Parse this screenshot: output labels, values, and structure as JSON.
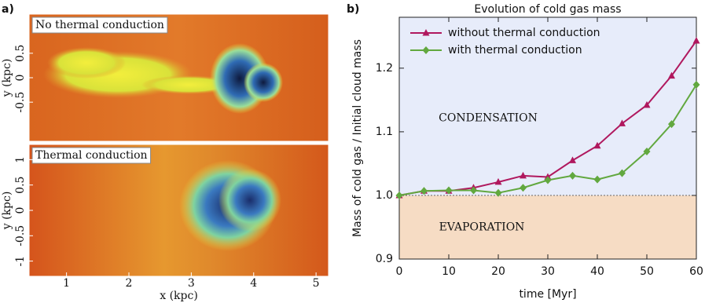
{
  "chart_data": [
    {
      "type": "image",
      "panel_label": "a)",
      "xlabel": "x (kpc)",
      "xlim": [
        0.4,
        5.2
      ],
      "xticks": [
        1,
        2,
        3,
        4,
        5
      ],
      "panels": [
        {
          "label": "No thermal conduction",
          "color": "#7a1a5e",
          "ylabel": "y (kpc)",
          "ylim": [
            -1.3,
            1.3
          ],
          "yticks": [
            0.5,
            0,
            -0.5
          ]
        },
        {
          "label": "Thermal conduction",
          "color": "#4f8f3a",
          "ylabel": "y (kpc)",
          "ylim": [
            -1.3,
            1.3
          ],
          "yticks": [
            1,
            0.5,
            0,
            -0.5,
            -1
          ]
        }
      ]
    },
    {
      "type": "line",
      "panel_label": "b)",
      "title": "Evolution of cold gas mass",
      "xlabel": "time [Myr]",
      "ylabel": "Mass of cold gas / Initial cloud mass",
      "x": [
        0,
        5,
        10,
        15,
        20,
        25,
        30,
        35,
        40,
        45,
        50,
        55,
        60
      ],
      "series": [
        {
          "name": "without thermal conduction",
          "color": "#b0185e",
          "marker": "triangle",
          "values": [
            1.0,
            1.007,
            1.007,
            1.012,
            1.021,
            1.031,
            1.029,
            1.055,
            1.078,
            1.113,
            1.142,
            1.188,
            1.243
          ]
        },
        {
          "name": "with thermal conduction",
          "color": "#62a83f",
          "marker": "diamond",
          "values": [
            1.0,
            1.007,
            1.008,
            1.008,
            1.004,
            1.012,
            1.024,
            1.031,
            1.025,
            1.035,
            1.069,
            1.112,
            1.174
          ]
        }
      ],
      "threshold": 1,
      "region_labels": [
        "CONDENSATION",
        "EVAPORATION"
      ],
      "xlim": [
        0,
        60
      ],
      "xticks": [
        0,
        10,
        20,
        30,
        40,
        50,
        60
      ],
      "ylim": [
        0.9,
        1.28
      ],
      "yticks": [
        0.9,
        {
          "value": 1,
          "label": "1.0"
        },
        1.1,
        1.2
      ],
      "legend": "upper-left"
    }
  ]
}
